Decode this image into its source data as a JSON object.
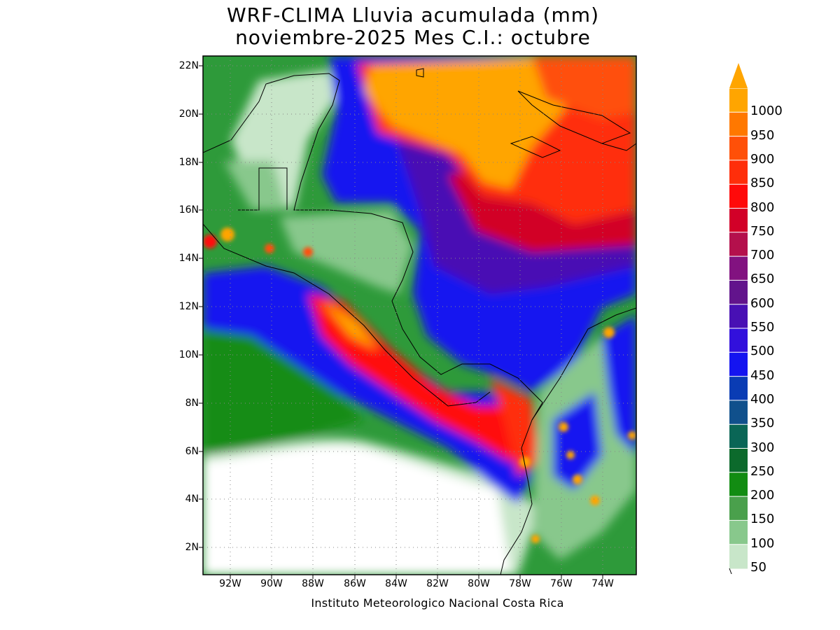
{
  "title": {
    "line1": "WRF-CLIMA Lluvia acumulada (mm)",
    "line2": "noviembre-2025 Mes C.I.: octubre"
  },
  "credit": "Instituto Meteorologico Nacional Costa Rica",
  "axes": {
    "lat_labels": [
      "22N",
      "20N",
      "18N",
      "16N",
      "14N",
      "12N",
      "10N",
      "8N",
      "6N",
      "4N",
      "2N"
    ],
    "lon_labels": [
      "92W",
      "90W",
      "88W",
      "86W",
      "84W",
      "82W",
      "80W",
      "78W",
      "76W",
      "74W"
    ]
  },
  "colorbar": {
    "levels": [
      "50",
      "100",
      "150",
      "200",
      "250",
      "300",
      "350",
      "400",
      "450",
      "500",
      "550",
      "600",
      "650",
      "700",
      "750",
      "800",
      "850",
      "900",
      "950",
      "1000"
    ],
    "colors": [
      "#c8e6c9",
      "#88c88c",
      "#4aa04c",
      "#128c12",
      "#0c6a2c",
      "#0a6656",
      "#10508c",
      "#0a3cb4",
      "#1414f0",
      "#3210dc",
      "#4810b4",
      "#62148c",
      "#821280",
      "#b4104c",
      "#d20028",
      "#ff0a0a",
      "#ff2e0a",
      "#ff5008",
      "#ff7800",
      "#ffa500"
    ]
  }
}
